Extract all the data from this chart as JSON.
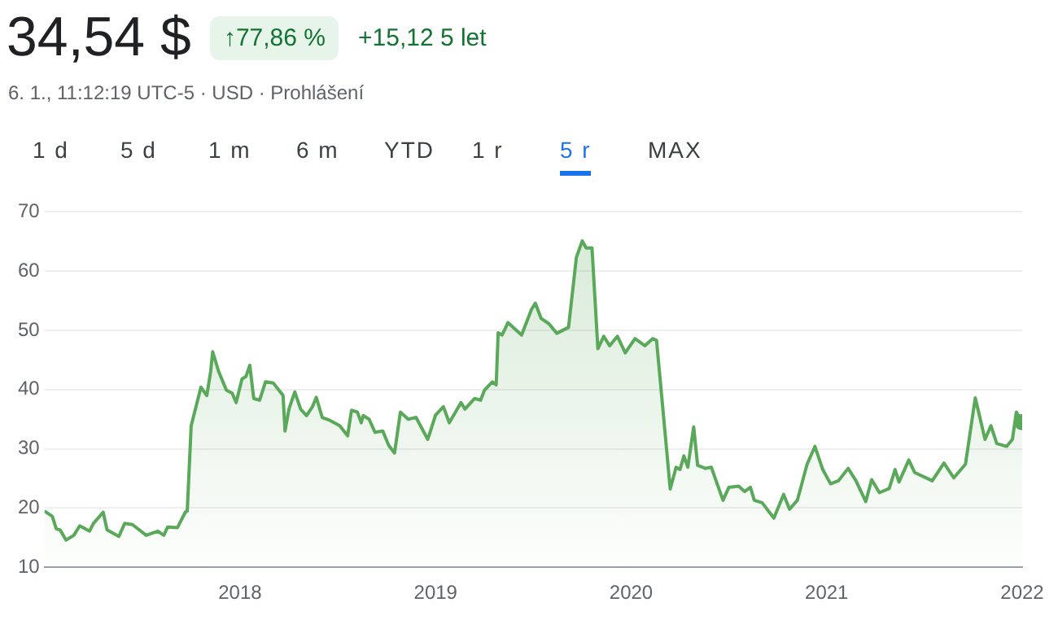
{
  "chart_data": {
    "type": "area",
    "title": "34,54 $",
    "subtitle": "6. 1., 11:12:19 UTC-5 · USD · Prohlášení",
    "annotations": [
      "↑77,86 %",
      "+15,12 5 let",
      "1 d",
      "5 d",
      "1 m",
      "6 m",
      "YTD",
      "1 r",
      "5 r",
      "MAX"
    ],
    "series": [
      {
        "color": "#5aa85a",
        "x": [
          2017.0,
          2017.04,
          2017.06,
          2017.08,
          2017.11,
          2017.15,
          2017.18,
          2017.23,
          2017.25,
          2017.3,
          2017.32,
          2017.38,
          2017.41,
          2017.45,
          2017.52,
          2017.58,
          2017.61,
          2017.63,
          2017.68,
          2017.72,
          2017.73,
          2017.75,
          2017.8,
          2017.83,
          2017.85,
          2017.86,
          2017.89,
          2017.93,
          2017.96,
          2017.98,
          2018.01,
          2018.03,
          2018.05,
          2018.07,
          2018.1,
          2018.13,
          2018.17,
          2018.22,
          2018.23,
          2018.25,
          2018.28,
          2018.31,
          2018.34,
          2018.37,
          2018.39,
          2018.42,
          2018.46,
          2018.51,
          2018.55,
          2018.57,
          2018.6,
          2018.62,
          2018.63,
          2018.66,
          2018.69,
          2018.73,
          2018.76,
          2018.79,
          2018.82,
          2018.86,
          2018.9,
          2018.96,
          2019.0,
          2019.04,
          2019.07,
          2019.13,
          2019.15,
          2019.2,
          2019.23,
          2019.25,
          2019.29,
          2019.31,
          2019.32,
          2019.34,
          2019.37,
          2019.41,
          2019.44,
          2019.49,
          2019.51,
          2019.54,
          2019.58,
          2019.62,
          2019.68,
          2019.72,
          2019.75,
          2019.77,
          2019.8,
          2019.83,
          2019.86,
          2019.89,
          2019.93,
          2019.97,
          2020.02,
          2020.07,
          2020.11,
          2020.13,
          2020.16,
          2020.2,
          2020.23,
          2020.25,
          2020.27,
          2020.29,
          2020.32,
          2020.34,
          2020.38,
          2020.41,
          2020.44,
          2020.47,
          2020.5,
          2020.55,
          2020.58,
          2020.61,
          2020.63,
          2020.67,
          2020.73,
          2020.78,
          2020.81,
          2020.85,
          2020.9,
          2020.94,
          2020.98,
          2021.02,
          2021.06,
          2021.11,
          2021.15,
          2021.2,
          2021.23,
          2021.27,
          2021.32,
          2021.35,
          2021.37,
          2021.42,
          2021.45,
          2021.54,
          2021.6,
          2021.65,
          2021.71,
          2021.76,
          2021.81,
          2021.84,
          2021.87,
          2021.92,
          2021.95,
          2021.97,
          2022.0
        ],
        "values": [
          19.5,
          18.6,
          16.5,
          16.3,
          14.6,
          15.4,
          17.0,
          16.1,
          17.4,
          19.3,
          16.3,
          15.2,
          17.4,
          17.2,
          15.4,
          16.1,
          15.4,
          16.8,
          16.7,
          19.3,
          19.5,
          33.9,
          40.4,
          39.0,
          43.1,
          46.4,
          43.1,
          39.9,
          39.4,
          37.8,
          41.8,
          42.2,
          44.1,
          38.5,
          38.2,
          41.3,
          41.1,
          39.0,
          33.0,
          36.7,
          39.6,
          36.7,
          35.6,
          37.1,
          38.7,
          35.3,
          34.8,
          33.9,
          32.2,
          36.5,
          36.2,
          34.4,
          35.6,
          35.0,
          32.8,
          33.0,
          30.6,
          29.3,
          36.2,
          35.0,
          35.3,
          31.6,
          35.7,
          37.1,
          34.4,
          37.8,
          36.7,
          38.5,
          38.2,
          39.9,
          41.3,
          40.8,
          49.6,
          49.2,
          51.3,
          50.1,
          49.2,
          53.5,
          54.6,
          52.0,
          51.1,
          49.5,
          50.5,
          62.3,
          65.1,
          63.9,
          63.9,
          46.9,
          49.0,
          47.4,
          49.0,
          46.2,
          48.6,
          47.4,
          48.6,
          48.3,
          37.6,
          23.2,
          26.9,
          26.5,
          28.8,
          26.9,
          33.7,
          27.2,
          26.7,
          26.9,
          24.1,
          21.3,
          23.5,
          23.7,
          22.8,
          23.5,
          21.3,
          20.9,
          18.3,
          22.3,
          19.8,
          21.3,
          27.4,
          30.4,
          26.5,
          24.1,
          24.6,
          26.7,
          24.6,
          21.1,
          24.8,
          22.6,
          23.3,
          26.5,
          24.4,
          28.1,
          26.0,
          24.6,
          27.6,
          25.1,
          27.4,
          38.6,
          31.6,
          33.9,
          30.9,
          30.4,
          31.6,
          36.2,
          34.5
        ]
      }
    ],
    "xlim": [
      2017,
      2022
    ],
    "xticks": [
      2018,
      2019,
      2020,
      2021,
      2022
    ],
    "ylim": [
      10,
      70
    ],
    "yticks": [
      10,
      20,
      30,
      40,
      50,
      60,
      70
    ],
    "grid": "y",
    "legend": false,
    "marker": "none",
    "line_style": "solid"
  }
}
